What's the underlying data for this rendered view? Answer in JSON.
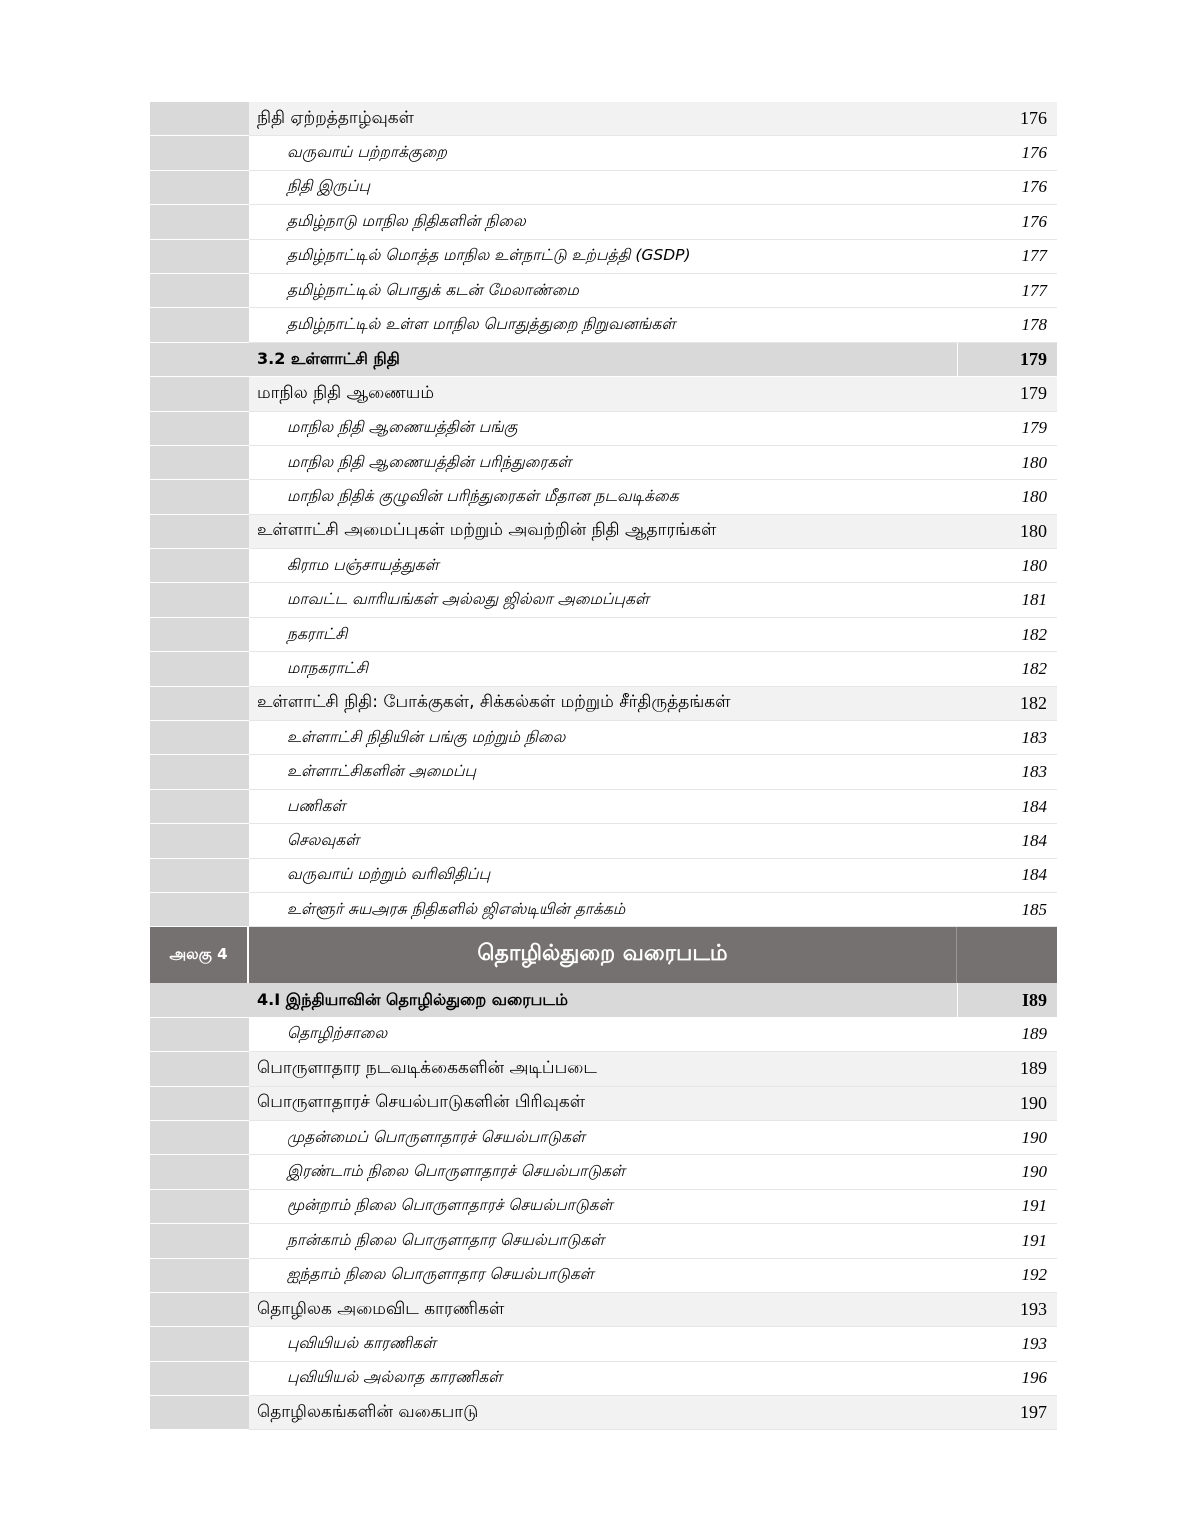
{
  "part1": [
    {
      "level": "l1",
      "text": "நிதி  ஏற்றத்தாழ்வுகள்",
      "page": "176"
    },
    {
      "level": "l2",
      "text": "வருவாய் பற்றாக்குறை",
      "page": "176"
    },
    {
      "level": "l2",
      "text": "நிதி இருப்பு",
      "page": "176"
    },
    {
      "level": "l2",
      "text": "தமிழ்நாடு மாநில நிதிகளின் நிலை",
      "page": "176"
    },
    {
      "level": "l2",
      "text": "தமிழ்நாட்டில் மொத்த மாநில உள்நாட்டு உற்பத்தி (GSDP)",
      "page": "177"
    },
    {
      "level": "l2",
      "text": "தமிழ்நாட்டில் பொதுக் கடன் மேலாண்மை",
      "page": "177"
    },
    {
      "level": "l2",
      "text": "தமிழ்நாட்டில் உள்ள மாநில பொதுத்துறை நிறுவனங்கள்",
      "page": "178"
    },
    {
      "level": "sec",
      "text": "3.2 உள்ளாட்சி நிதி",
      "page": "179"
    },
    {
      "level": "l1",
      "text": "மாநில  நிதி  ஆணையம்",
      "page": "179"
    },
    {
      "level": "l2",
      "text": "மாநில நிதி ஆணையத்தின் பங்கு",
      "page": "179"
    },
    {
      "level": "l2",
      "text": "மாநில நிதி ஆணையத்தின் பரிந்துரைகள்",
      "page": "180"
    },
    {
      "level": "l2",
      "text": "மாநில நிதிக் குழுவின் பரிந்துரைகள் மீதான நடவடிக்கை",
      "page": "180"
    },
    {
      "level": "l1",
      "text": "உள்ளாட்சி  அமைப்புகள்  மற்றும்  அவற்றின்  நிதி  ஆதாரங்கள்",
      "page": "180"
    },
    {
      "level": "l2",
      "text": "கிராம பஞ்சாயத்துகள்",
      "page": "180"
    },
    {
      "level": "l2",
      "text": "மாவட்ட வாரியங்கள் அல்லது ஜில்லா அமைப்புகள்",
      "page": "181"
    },
    {
      "level": "l2",
      "text": "நகராட்சி",
      "page": "182"
    },
    {
      "level": "l2",
      "text": "மாநகராட்சி",
      "page": "182"
    },
    {
      "level": "l1",
      "text": "உள்ளாட்சி  நிதி:  போக்குகள்,  சிக்கல்கள்  மற்றும்  சீர்திருத்தங்கள்",
      "page": "182"
    },
    {
      "level": "l2",
      "text": "உள்ளாட்சி நிதியின் பங்கு மற்றும் நிலை",
      "page": "183"
    },
    {
      "level": "l2",
      "text": "உள்ளாட்சிகளின் அமைப்பு",
      "page": "183"
    },
    {
      "level": "l2",
      "text": "பணிகள்",
      "page": "184"
    },
    {
      "level": "l2",
      "text": "செலவுகள்",
      "page": "184"
    },
    {
      "level": "l2",
      "text": "வருவாய் மற்றும் வரிவிதிப்பு",
      "page": "184"
    },
    {
      "level": "l2",
      "text": "உள்ளூர் சுயஅரசு நிதிகளில் ஜிஎஸ்டியின் தாக்கம்",
      "page": "185"
    }
  ],
  "chapter": {
    "unit": "அலகு 4",
    "title": "தொழில்துறை வரைபடம்"
  },
  "part2": [
    {
      "level": "sec",
      "text": "4.I இந்தியாவின் தொழில்துறை வரைபடம்",
      "page": "I89"
    },
    {
      "level": "l2",
      "text": "தொழிற்சாலை",
      "page": "189"
    },
    {
      "level": "l1",
      "text": "பொருளாதார  நடவடிக்கைகளின்  அடிப்படை",
      "page": "189"
    },
    {
      "level": "l1",
      "text": "பொருளாதாரச்  செயல்பாடுகளின்  பிரிவுகள்",
      "page": "190"
    },
    {
      "level": "l2",
      "text": "முதன்மைப் பொருளாதாரச் செயல்பாடுகள்",
      "page": "190"
    },
    {
      "level": "l2",
      "text": "இரண்டாம் நிலை பொருளாதாரச் செயல்பாடுகள்",
      "page": "190"
    },
    {
      "level": "l2",
      "text": "மூன்றாம் நிலை பொருளாதாரச் செயல்பாடுகள்",
      "page": "191"
    },
    {
      "level": "l2",
      "text": "நான்காம் நிலை பொருளாதார செயல்பாடுகள்",
      "page": "191"
    },
    {
      "level": "l2",
      "text": "ஐந்தாம் நிலை பொருளாதார செயல்பாடுகள்",
      "page": "192"
    },
    {
      "level": "l1",
      "text": "தொழிலக  அமைவிட  காரணிகள்",
      "page": "193"
    },
    {
      "level": "l2",
      "text": "புவியியல் காரணிகள்",
      "page": "193"
    },
    {
      "level": "l2",
      "text": "புவியியல் அல்லாத காரணிகள்",
      "page": "196"
    },
    {
      "level": "l1",
      "text": "தொழிலகங்களின்  வகைபாடு",
      "page": "197"
    }
  ]
}
